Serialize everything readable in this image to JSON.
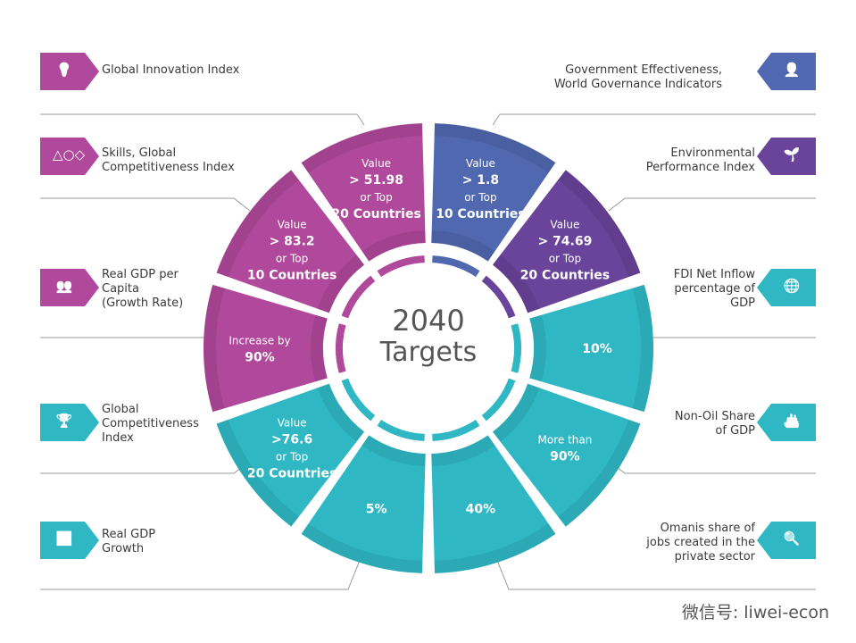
{
  "center": {
    "line1": "2040",
    "line2": "Targets"
  },
  "colors": {
    "magenta": "#b0489b",
    "blue": "#5068b0",
    "purple": "#6a449a",
    "teal": "#2fb8c4"
  },
  "segments": [
    {
      "color": "blue",
      "lines": [
        "Value",
        "> 1.8",
        "or Top",
        "10 Countries"
      ],
      "indicator": "Government Effectiveness, World Governance Indicators"
    },
    {
      "color": "purple",
      "lines": [
        "Value",
        "> 74.69",
        "or Top",
        "20 Countries"
      ],
      "indicator": "Environmental Performance Index"
    },
    {
      "color": "teal",
      "lines": [
        "10%"
      ],
      "indicator": "FDI Net Inflow percentage of GDP"
    },
    {
      "color": "teal",
      "lines": [
        "More than",
        "90%"
      ],
      "indicator": "Non-Oil Share of GDP"
    },
    {
      "color": "teal",
      "lines": [
        "40%"
      ],
      "indicator": "Omanis share of jobs created in the private sector"
    },
    {
      "color": "teal",
      "lines": [
        "5%"
      ],
      "indicator": "Real GDP Growth"
    },
    {
      "color": "teal",
      "lines": [
        "Value",
        ">76.6",
        "or Top",
        "20 Countries"
      ],
      "indicator": "Global Competitiveness Index"
    },
    {
      "color": "magenta",
      "lines": [
        "Increase by",
        "90%"
      ],
      "indicator": "Real GDP per Capita (Growth Rate)"
    },
    {
      "color": "magenta",
      "lines": [
        "Value",
        "> 83.2",
        "or Top",
        "10 Countries"
      ],
      "indicator": "Skills, Global Competitiveness Index"
    },
    {
      "color": "magenta",
      "lines": [
        "Value",
        "> 51.98",
        "or Top",
        "20 Countries"
      ],
      "indicator": "Global Innovation Index"
    }
  ],
  "left_labels": [
    {
      "text": [
        "Global Innovation Index"
      ],
      "icon": "lightbulb-icon",
      "color": "magenta"
    },
    {
      "text": [
        "Skills, Global",
        "Competitiveness Index"
      ],
      "icon": "juggling-person-icon",
      "color": "magenta"
    },
    {
      "text": [
        "Real GDP per",
        "Capita",
        "(Growth Rate)"
      ],
      "icon": "people-group-icon",
      "color": "magenta"
    },
    {
      "text": [
        "Global",
        "Competitiveness",
        "Index"
      ],
      "icon": "podium-people-icon",
      "color": "teal"
    },
    {
      "text": [
        "Real GDP",
        "Growth"
      ],
      "icon": "growth-chart-icon",
      "color": "teal"
    }
  ],
  "right_labels": [
    {
      "text": [
        "Government Effectiveness,",
        "World Governance Indicators"
      ],
      "icon": "officials-icon",
      "color": "blue"
    },
    {
      "text": [
        "Environmental",
        "Performance Index"
      ],
      "icon": "plant-icon",
      "color": "purple"
    },
    {
      "text": [
        "FDI Net Inflow",
        "percentage of",
        "GDP"
      ],
      "icon": "globe-icon",
      "color": "teal"
    },
    {
      "text": [
        "Non-Oil Share",
        "of GDP"
      ],
      "icon": "cargo-ship-icon",
      "color": "teal"
    },
    {
      "text": [
        "Omanis share of",
        "jobs created in the",
        "private sector"
      ],
      "icon": "document-search-icon",
      "color": "teal"
    }
  ],
  "watermark": "微信号: liwei-econ"
}
